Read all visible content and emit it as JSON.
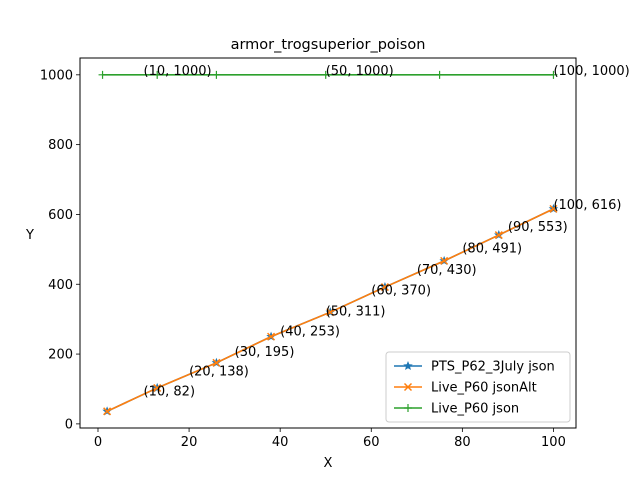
{
  "chart_data": {
    "type": "line",
    "title": "armor_trogsuperior_poison",
    "xlabel": "X",
    "ylabel": "Y",
    "xlim": [
      -3.95,
      104.95
    ],
    "ylim": [
      -11.8,
      1048.2
    ],
    "xticks": [
      0,
      20,
      40,
      60,
      80,
      100
    ],
    "yticks": [
      0,
      200,
      400,
      600,
      800,
      1000
    ],
    "grid": false,
    "legend_position": "lower right",
    "series": [
      {
        "name": "PTS_P62_3July json",
        "color": "#1f77b4",
        "marker": "star",
        "x": [
          2,
          13,
          26,
          38,
          51,
          63,
          76,
          88,
          100
        ],
        "y": [
          36,
          103,
          175,
          250,
          320,
          392,
          467,
          541,
          616
        ]
      },
      {
        "name": "Live_P60 jsonAlt",
        "color": "#ff7f0e",
        "marker": "x",
        "x": [
          2,
          13,
          26,
          38,
          51,
          63,
          76,
          88,
          100
        ],
        "y": [
          36,
          103,
          175,
          250,
          320,
          392,
          467,
          541,
          616
        ]
      },
      {
        "name": "Live_P60 json",
        "color": "#2ca02c",
        "marker": "plus",
        "x": [
          1,
          13,
          26,
          50,
          75,
          100
        ],
        "y": [
          1000,
          1000,
          1000,
          1000,
          1000,
          1000
        ]
      }
    ],
    "annotations": [
      {
        "text": "(10, 82)",
        "x": 10,
        "y": 82
      },
      {
        "text": "(20, 138)",
        "x": 20,
        "y": 138
      },
      {
        "text": "(30, 195)",
        "x": 30,
        "y": 195
      },
      {
        "text": "(40, 253)",
        "x": 40,
        "y": 253
      },
      {
        "text": "(50, 311)",
        "x": 50,
        "y": 311
      },
      {
        "text": "(60, 370)",
        "x": 60,
        "y": 370
      },
      {
        "text": "(70, 430)",
        "x": 70,
        "y": 430
      },
      {
        "text": "(80, 491)",
        "x": 80,
        "y": 491
      },
      {
        "text": "(90, 553)",
        "x": 90,
        "y": 553
      },
      {
        "text": "(100, 616)",
        "x": 100,
        "y": 616
      },
      {
        "text": "(10, 1000)",
        "x": 10,
        "y": 1000
      },
      {
        "text": "(50, 1000)",
        "x": 50,
        "y": 1000
      },
      {
        "text": "(100, 1000)",
        "x": 100,
        "y": 1000
      }
    ]
  }
}
